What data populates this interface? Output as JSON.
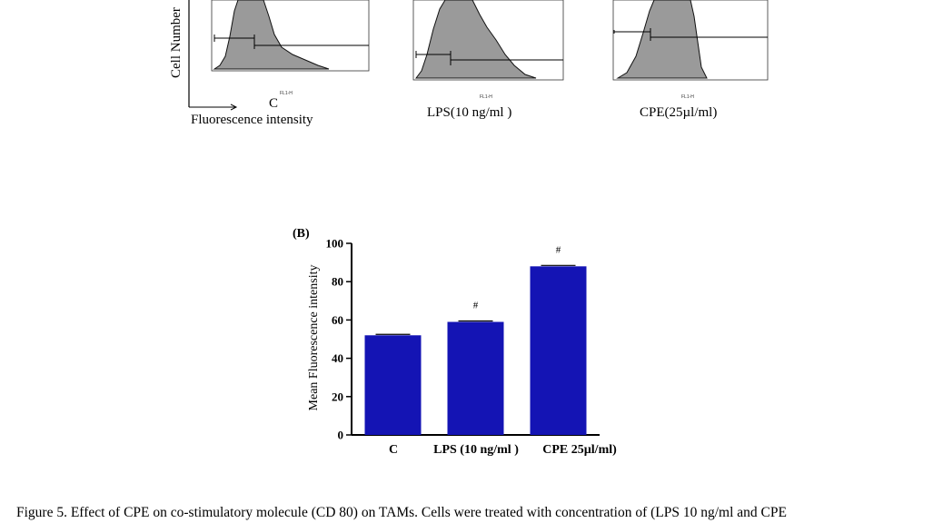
{
  "panel_a": {
    "ylabel": "Cell Number",
    "xlabel": "Fluorescence intensity",
    "axis_caption": "FL1-H",
    "panels": [
      {
        "label": "C"
      },
      {
        "label": "LPS(10 ng/ml )"
      },
      {
        "label": "CPE(25µl/ml)"
      }
    ]
  },
  "chart_data": {
    "type": "bar",
    "panel_label": "(B)",
    "title": "",
    "ylabel": "Mean Fluorescence intensity",
    "xlabel": "",
    "categories": [
      "C",
      "LPS (10 ng/ml )",
      "CPE  25µl/ml)"
    ],
    "values": [
      52,
      59,
      88
    ],
    "significance": [
      "",
      "#",
      "#"
    ],
    "ylim": [
      0,
      100
    ],
    "yticks": [
      0,
      20,
      40,
      60,
      80,
      100
    ],
    "bar_color": "#1414b4",
    "grid": false
  },
  "caption": "Figure 5. Effect of CPE on co-stimulatory molecule (CD 80) on TAMs. Cells were treated with concentration of (LPS 10 ng/ml and CPE"
}
